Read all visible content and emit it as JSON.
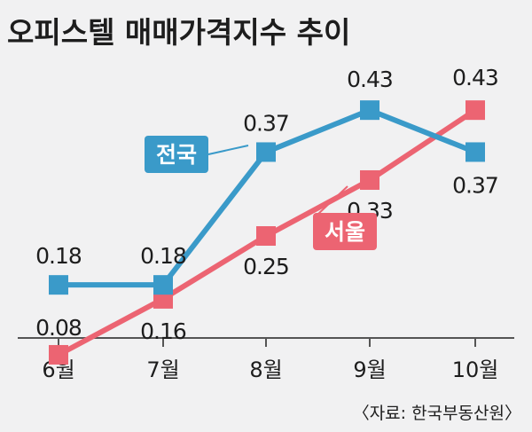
{
  "chart_data": {
    "type": "line",
    "title": "오피스텔 매매가격지수 추이",
    "categories": [
      "6월",
      "7월",
      "8월",
      "9월",
      "10월"
    ],
    "series": [
      {
        "name": "전국",
        "values": [
          0.18,
          0.18,
          0.37,
          0.43,
          0.37
        ],
        "labels": [
          "0.18",
          "0.18",
          "0.37",
          "0.43",
          "0.37"
        ],
        "color": "#3a9ac9"
      },
      {
        "name": "서울",
        "values": [
          0.08,
          0.16,
          0.25,
          0.33,
          0.43
        ],
        "labels": [
          "0.08",
          "0.16",
          "0.25",
          "0.33",
          "0.43"
        ],
        "color": "#ec6472"
      }
    ],
    "ylim": [
      0.0,
      0.5
    ],
    "grid": false,
    "source": "〈자료: 한국부동산원〉",
    "colors": {
      "background": "#f1f1f2",
      "axis": "#555555",
      "text": "#1d1d1d"
    }
  }
}
